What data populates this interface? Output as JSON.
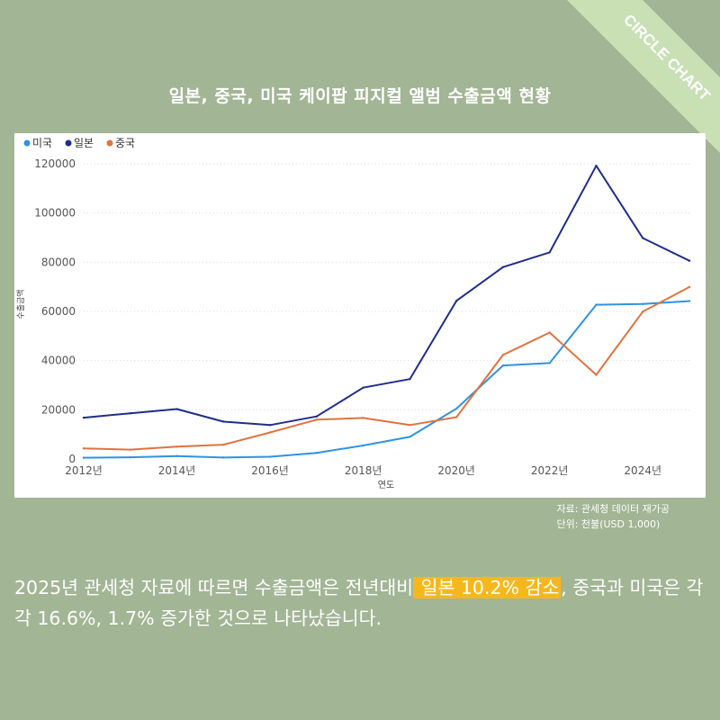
{
  "banner": {
    "text": "CIRCLE CHART"
  },
  "title": "일본, 중국, 미국  케이팝 피지컬 앨범 수출금액 현황",
  "colors": {
    "background": "#a2b595",
    "banner": "#c8e0b4",
    "usa": "#2f93e0",
    "japan": "#1f2d8c",
    "china": "#e0733e",
    "highlight": "#f5b81c"
  },
  "chart_data": {
    "type": "line",
    "x": [
      2012,
      2013,
      2014,
      2015,
      2016,
      2017,
      2018,
      2019,
      2020,
      2021,
      2022,
      2023,
      2024,
      2025
    ],
    "x_ticks": [
      "2012년",
      "2014년",
      "2016년",
      "2018년",
      "2020년",
      "2022년",
      "2024년"
    ],
    "x_tick_values": [
      2012,
      2014,
      2016,
      2018,
      2020,
      2022,
      2024
    ],
    "xlabel": "연도",
    "ylabel": "수출금액",
    "ylim": [
      0,
      120000
    ],
    "y_ticks": [
      "0",
      "20000",
      "40000",
      "60000",
      "80000",
      "100000",
      "120000"
    ],
    "y_tick_values": [
      0,
      20000,
      40000,
      60000,
      80000,
      100000,
      120000
    ],
    "legend_position": "top-left",
    "series": [
      {
        "key": "usa",
        "name": "미국",
        "color": "#2f93e0",
        "values": [
          500,
          700,
          1200,
          600,
          900,
          2500,
          5500,
          9000,
          20500,
          38000,
          39000,
          62700,
          63000,
          64200
        ]
      },
      {
        "key": "japan",
        "name": "일본",
        "color": "#1f2d8c",
        "values": [
          16800,
          18600,
          20300,
          15200,
          13800,
          17300,
          29000,
          32500,
          64300,
          78000,
          84000,
          119200,
          89800,
          80600
        ]
      },
      {
        "key": "china",
        "name": "중국",
        "color": "#e0733e",
        "values": [
          4300,
          3800,
          5000,
          5800,
          10800,
          16000,
          16700,
          13800,
          17000,
          42300,
          51400,
          34200,
          59900,
          69900
        ]
      }
    ]
  },
  "source": {
    "line1": "자료: 관세청 데이터 재가공",
    "line2": "단위: 천불(USD 1,000)"
  },
  "summary": {
    "part1": "2025년 관세청 자료에 따르면 수출금액은 전년대비",
    "highlight": " 일본 10.2% 감소",
    "part2": ", 중국과 미국은 각각 16.6%, 1.7% 증가한 것으로 나타났습니다."
  }
}
